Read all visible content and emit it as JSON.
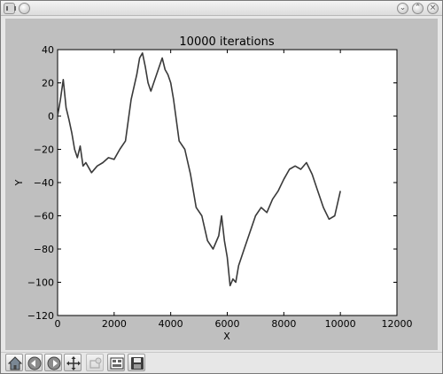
{
  "window": {
    "icons": {
      "app": "app-logo-icon",
      "menu": "window-menu-icon",
      "minimize": "minimize-icon",
      "maximize": "maximize-icon",
      "close": "close-icon"
    },
    "glyphs": {
      "minimize": "⌄",
      "maximize": "⌃",
      "close": "×"
    }
  },
  "toolbar": {
    "buttons": [
      {
        "name": "home-button",
        "icon": "home-icon"
      },
      {
        "name": "back-button",
        "icon": "back-arrow-icon"
      },
      {
        "name": "forward-button",
        "icon": "forward-arrow-icon"
      },
      {
        "name": "pan-button",
        "icon": "pan-arrows-icon"
      },
      {
        "name": "zoom-button",
        "icon": "zoom-rectangle-icon"
      },
      {
        "name": "subplots-button",
        "icon": "subplots-config-icon"
      },
      {
        "name": "save-button",
        "icon": "save-disk-icon"
      }
    ]
  },
  "chart_data": {
    "type": "line",
    "title": "10000 iterations",
    "xlabel": "X",
    "ylabel": "Y",
    "xlim": [
      0,
      12000
    ],
    "ylim": [
      -120,
      40
    ],
    "xticks": [
      "0",
      "2000",
      "4000",
      "6000",
      "8000",
      "10000",
      "12000"
    ],
    "yticks": [
      "40",
      "20",
      "0",
      "−20",
      "−40",
      "−60",
      "−80",
      "−100",
      "−120"
    ],
    "grid": false,
    "legend": "none",
    "line_color": "#3a3a3a",
    "series": [
      {
        "x": [
          0,
          100,
          200,
          300,
          400,
          500,
          600,
          700,
          800,
          900,
          1000,
          1200,
          1400,
          1600,
          1800,
          2000,
          2200,
          2400,
          2600,
          2800,
          2900,
          3000,
          3100,
          3200,
          3300,
          3400,
          3500,
          3600,
          3700,
          3800,
          3900,
          4000,
          4100,
          4300,
          4500,
          4700,
          4900,
          5100,
          5300,
          5500,
          5700,
          5800,
          5900,
          6000,
          6100,
          6200,
          6300,
          6400,
          6600,
          6800,
          7000,
          7200,
          7400,
          7600,
          7800,
          8000,
          8200,
          8400,
          8600,
          8800,
          9000,
          9200,
          9400,
          9600,
          9800,
          10000
        ],
        "y": [
          0,
          10,
          22,
          5,
          -2,
          -10,
          -20,
          -25,
          -18,
          -30,
          -28,
          -34,
          -30,
          -28,
          -25,
          -26,
          -20,
          -15,
          10,
          25,
          35,
          38,
          30,
          20,
          15,
          20,
          25,
          30,
          35,
          28,
          25,
          20,
          10,
          -15,
          -20,
          -35,
          -55,
          -60,
          -75,
          -80,
          -72,
          -60,
          -75,
          -85,
          -102,
          -98,
          -100,
          -90,
          -80,
          -70,
          -60,
          -55,
          -58,
          -50,
          -45,
          -38,
          -32,
          -30,
          -32,
          -28,
          -35,
          -45,
          -55,
          -62,
          -60,
          -45
        ]
      }
    ]
  }
}
